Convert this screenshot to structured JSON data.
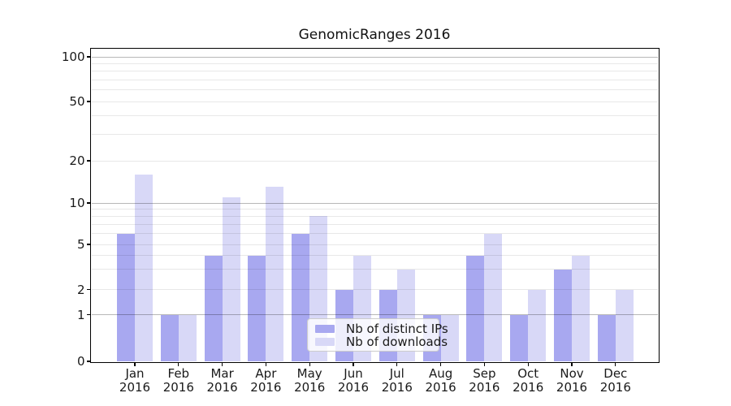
{
  "chart_data": {
    "type": "bar",
    "title": "GenomicRanges 2016",
    "x_axis": {
      "months": [
        "Jan",
        "Feb",
        "Mar",
        "Apr",
        "May",
        "Jun",
        "Jul",
        "Aug",
        "Sep",
        "Oct",
        "Nov",
        "Dec"
      ],
      "year": "2016"
    },
    "series": [
      {
        "name": "Nb of distinct IPs",
        "color": "#a8a8f0",
        "values": [
          6,
          1,
          4,
          4,
          6,
          2,
          2,
          1,
          4,
          1,
          3,
          1
        ]
      },
      {
        "name": "Nb of downloads",
        "color": "#d8d8f7",
        "values": [
          16,
          1,
          11,
          13,
          8,
          4,
          3,
          1,
          6,
          2,
          4,
          2
        ]
      }
    ],
    "y_axis": {
      "scale": "log-like",
      "tick_values": [
        100,
        50,
        20,
        10,
        5,
        2,
        1,
        0
      ],
      "minor_grid_values": [
        90,
        80,
        70,
        60,
        40,
        30,
        9,
        8,
        7,
        6,
        4,
        3
      ],
      "emphasized_grid_values": [
        100,
        10,
        1
      ]
    },
    "legend": {
      "position": "lower-center"
    },
    "grid": "horizontal",
    "colors": {
      "background": "#ffffff",
      "axis": "#000000",
      "text": "#1a1a1a",
      "minor_grid": "rgba(0,0,0,0.09)",
      "decade_grid": "rgba(0,0,0,0.28)"
    }
  }
}
